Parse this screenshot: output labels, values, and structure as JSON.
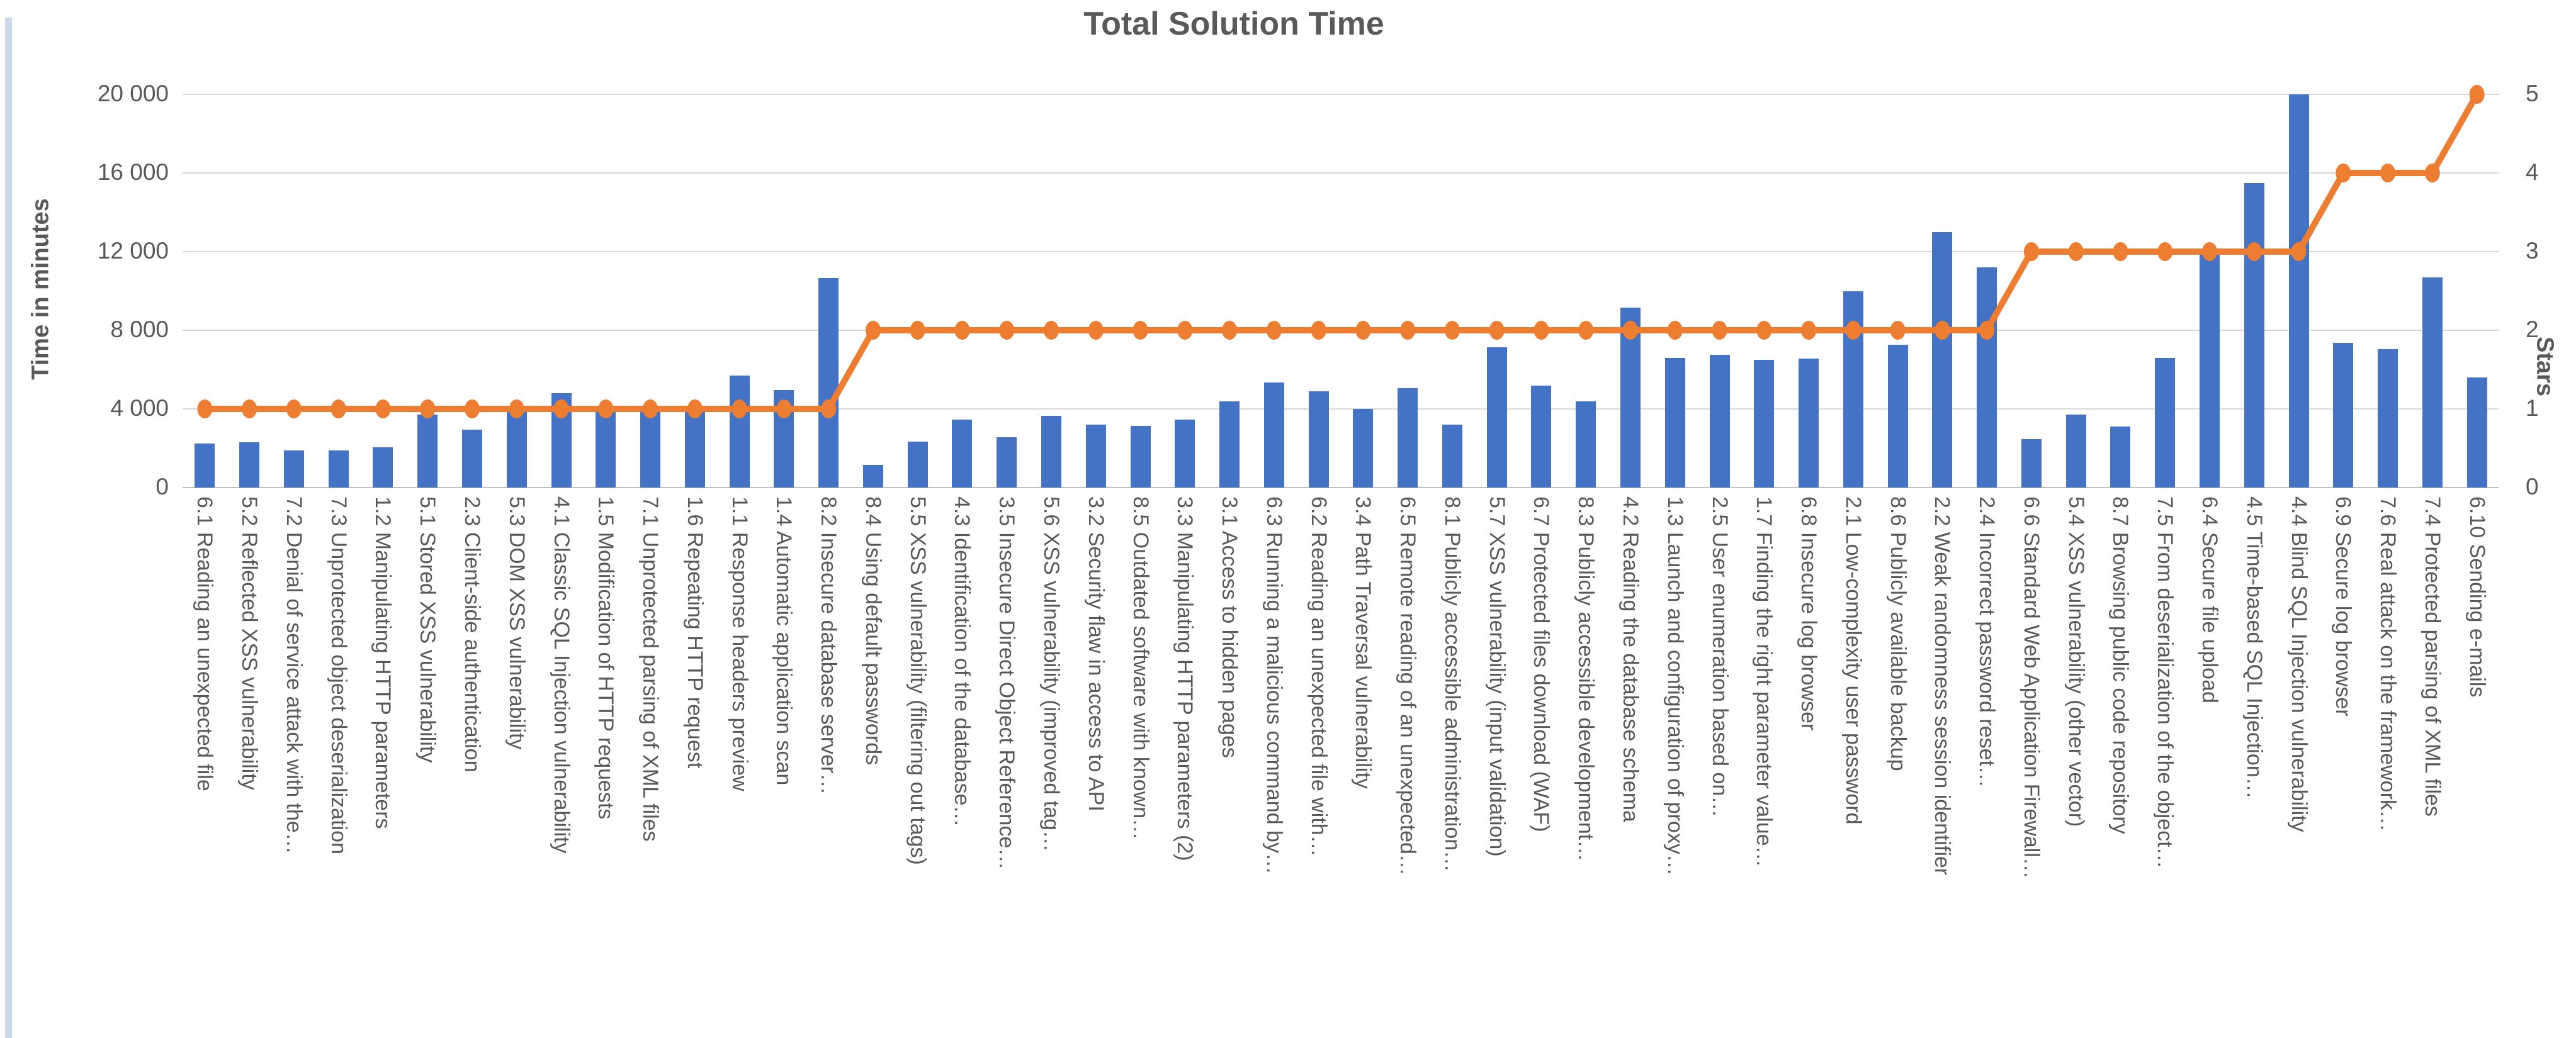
{
  "window": {
    "left_edge_strip_color": "#ccd9ec"
  },
  "chart_data": {
    "type": "bar",
    "title": "Total Solution Time",
    "ylabel_left": "Time in minutes",
    "ylabel_right": "Stars",
    "y_left_axis": {
      "ticks": [
        "20 000",
        "16 000",
        "12 000",
        "8 000",
        "4 000",
        "0"
      ],
      "min": 0,
      "max": 20000
    },
    "y_right_axis": {
      "ticks": [
        "5",
        "4",
        "3",
        "2",
        "1",
        "0"
      ],
      "min": 0,
      "max": 5
    },
    "grid": true,
    "legend_position": "none",
    "colors": {
      "bar": "#4472C4",
      "line": "#ED7D31",
      "text": "#595959",
      "gridline": "#D9D9D9",
      "axisline": "#BFBFBF"
    },
    "categories": [
      "6.1 Reading an unexpected file",
      "5.2 Reflected XSS vulnerability",
      "7.2 Denial of service attack with the…",
      "7.3 Unprotected object deserialization",
      "1.2 Manipulating HTTP parameters",
      "5.1 Stored XSS vulnerability",
      "2.3 Client-side authentication",
      "5.3 DOM XSS vulnerability",
      "4.1 Classic SQL Injection vulnerability",
      "1.5 Modification of HTTP requests",
      "7.1 Unprotected parsing of XML files",
      "1.6 Repeating HTTP request",
      "1.1 Response headers preview",
      "1.4 Automatic application scan",
      "8.2 Insecure database server…",
      "8.4 Using default passwords",
      "5.5 XSS vulnerability (filtering out tags)",
      "4.3 Identification of the database…",
      "3.5 Insecure Direct Object Reference…",
      "5.6 XSS vulnerability (improved tag…",
      "3.2 Security flaw in access to API",
      "8.5 Outdated software with known…",
      "3.3 Manipulating HTTP parameters (2)",
      "3.1 Access to hidden pages",
      "6.3 Running a malicious command by…",
      "6.2 Reading an unexpected file with…",
      "3.4 Path Traversal vulnerability",
      "6.5 Remote reading of an unexpected…",
      "8.1 Publicly accessible administration…",
      "5.7 XSS vulnerability (input validation)",
      "6.7 Protected files download (WAF)",
      "8.3 Publicly accessible development…",
      "4.2 Reading the database schema",
      "1.3 Launch and configuration of proxy…",
      "2.5 User enumeration based on…",
      "1.7 Finding the right parameter value…",
      "6.8 Insecure log browser",
      "2.1 Low-complexity user password",
      "8.6 Publicly available backup",
      "2.2 Weak randomness session identifier",
      "2.4 Incorrect password reset…",
      "6.6 Standard Web Application Firewall…",
      "5.4 XSS vulnerability (other vector)",
      "8.7 Browsing public code repository",
      "7.5 From deserialization of the object…",
      "6.4 Secure file upload",
      "4.5 Time-based SQL Injection…",
      "4.4 Blind SQL Injection vulnerability",
      "6.9 Secure log browser",
      "7.6 Real attack on the framework…",
      "7.4 Protected parsing of XML files",
      "6.10 Sending e-mails"
    ],
    "series": [
      {
        "name": "Total solution time",
        "type": "bar",
        "axis": "left",
        "values": [
          2250,
          2300,
          1900,
          1900,
          2050,
          3700,
          2950,
          4100,
          4800,
          3950,
          4050,
          3950,
          5700,
          4950,
          10650,
          1150,
          2350,
          3450,
          2550,
          3650,
          3200,
          3150,
          3450,
          4400,
          5350,
          4900,
          4000,
          5050,
          3200,
          7150,
          5200,
          4400,
          9150,
          6600,
          6750,
          6500,
          6550,
          10000,
          7250,
          13000,
          11200,
          2450,
          3700,
          3100,
          6600,
          11900,
          15500,
          20000,
          7350,
          7050,
          10700,
          5600
        ]
      },
      {
        "name": "Stars",
        "type": "line",
        "axis": "right",
        "values": [
          1,
          1,
          1,
          1,
          1,
          1,
          1,
          1,
          1,
          1,
          1,
          1,
          1,
          1,
          1,
          2,
          2,
          2,
          2,
          2,
          2,
          2,
          2,
          2,
          2,
          2,
          2,
          2,
          2,
          2,
          2,
          2,
          2,
          2,
          2,
          2,
          2,
          2,
          2,
          2,
          2,
          3,
          3,
          3,
          3,
          3,
          3,
          3,
          4,
          4,
          4,
          5
        ]
      }
    ]
  }
}
